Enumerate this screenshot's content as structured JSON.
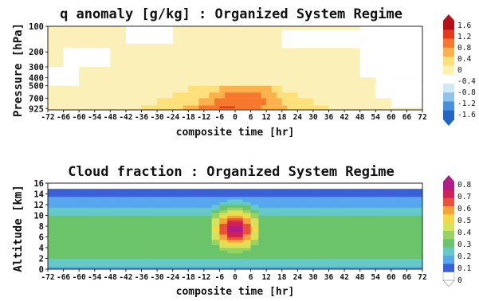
{
  "colors": {
    "q_scale": [
      "#2166c2",
      "#4a8fe0",
      "#8fc3ee",
      "#cfe8f5",
      "#ffffff",
      "#fff3b0",
      "#fde07a",
      "#fbb24c",
      "#f5782e",
      "#e43a1c",
      "#b5101a"
    ],
    "cf_scale": [
      "#ffffff",
      "#3b5fd6",
      "#57a6ee",
      "#64c9c8",
      "#6cc46a",
      "#98d260",
      "#d6e35a",
      "#f5d84a",
      "#f6a33a",
      "#e85238",
      "#d21f57",
      "#b01c8a"
    ],
    "q_background": "#fbf0b8"
  },
  "chart_data": [
    {
      "type": "heatmap",
      "title": "q anomaly [g/kg] : Organized System Regime",
      "xlabel": "composite time [hr]",
      "ylabel": "Pressure [hPa]",
      "x_ticks": [
        "-72",
        "-66",
        "-60",
        "-54",
        "-48",
        "-42",
        "-36",
        "-30",
        "-24",
        "-18",
        "-12",
        "-6",
        "0",
        "6",
        "12",
        "18",
        "24",
        "30",
        "36",
        "42",
        "48",
        "54",
        "60",
        "66",
        "72"
      ],
      "y_ticks": [
        "100",
        "200",
        "300",
        "400",
        "500",
        "700",
        "925"
      ],
      "xlim": [
        -72,
        72
      ],
      "colorbar": {
        "ticks": [
          "1.6",
          "1.2",
          "0.8",
          "0.4",
          "0",
          "-0.4",
          "-0.8",
          "-1.2",
          "-1.6"
        ],
        "range": [
          -1.6,
          1.6
        ]
      },
      "cells": [
        {
          "t0": -36,
          "t1": 36,
          "p0": 850,
          "p1": 960,
          "v": 0.3
        },
        {
          "t0": -30,
          "t1": 30,
          "p0": 700,
          "p1": 850,
          "v": 0.3
        },
        {
          "t0": -24,
          "t1": 24,
          "p0": 600,
          "p1": 700,
          "v": 0.3
        },
        {
          "t0": -18,
          "t1": 18,
          "p0": 500,
          "p1": 600,
          "v": 0.3
        },
        {
          "t0": -20,
          "t1": 20,
          "p0": 850,
          "p1": 950,
          "v": 0.55
        },
        {
          "t0": -14,
          "t1": 18,
          "p0": 700,
          "p1": 850,
          "v": 0.55
        },
        {
          "t0": -10,
          "t1": 16,
          "p0": 600,
          "p1": 700,
          "v": 0.55
        },
        {
          "t0": -6,
          "t1": 14,
          "p0": 500,
          "p1": 600,
          "v": 0.55
        },
        {
          "t0": -14,
          "t1": 10,
          "p0": 850,
          "p1": 940,
          "v": 0.8
        },
        {
          "t0": -8,
          "t1": 12,
          "p0": 700,
          "p1": 850,
          "v": 0.8
        },
        {
          "t0": -4,
          "t1": 10,
          "p0": 600,
          "p1": 700,
          "v": 0.8
        },
        {
          "t0": -8,
          "t1": 4,
          "p0": 850,
          "p1": 930,
          "v": 1.1
        },
        {
          "t0": -2,
          "t1": 6,
          "p0": 700,
          "p1": 850,
          "v": 1.1
        },
        {
          "t0": -6,
          "t1": 0,
          "p0": 870,
          "p1": 920,
          "v": 1.4
        },
        {
          "t0": -72,
          "t1": -60,
          "p0": 300,
          "p1": 500,
          "v": -0.2
        },
        {
          "t0": -66,
          "t1": -48,
          "p0": 180,
          "p1": 300,
          "v": -0.2
        },
        {
          "t0": -42,
          "t1": -24,
          "p0": 100,
          "p1": 160,
          "v": -0.2
        },
        {
          "t0": 18,
          "t1": 48,
          "p0": 110,
          "p1": 180,
          "v": -0.2
        },
        {
          "t0": 48,
          "t1": 72,
          "p0": 100,
          "p1": 400,
          "v": -0.2
        },
        {
          "t0": 54,
          "t1": 72,
          "p0": 400,
          "p1": 700,
          "v": -0.2
        },
        {
          "t0": 60,
          "t1": 72,
          "p0": 700,
          "p1": 900,
          "v": -0.2
        }
      ]
    },
    {
      "type": "heatmap",
      "title": "Cloud fraction : Organized System Regime",
      "xlabel": "composite time [hr]",
      "ylabel": "Altitude [km]",
      "x_ticks": [
        "-72",
        "-66",
        "-60",
        "-54",
        "-48",
        "-42",
        "-36",
        "-30",
        "-24",
        "-18",
        "-12",
        "-6",
        "0",
        "6",
        "12",
        "18",
        "24",
        "30",
        "36",
        "42",
        "48",
        "54",
        "60",
        "66",
        "72"
      ],
      "y_ticks": [
        "0",
        "2",
        "4",
        "6",
        "8",
        "10",
        "12",
        "14",
        "16"
      ],
      "xlim": [
        -72,
        72
      ],
      "ylim": [
        0,
        16
      ],
      "colorbar": {
        "ticks": [
          "0.8",
          "0.7",
          "0.6",
          "0.5",
          "0.4",
          "0.3",
          "0.2",
          "0.1",
          "0"
        ],
        "range": [
          0,
          0.8
        ]
      },
      "profile_km": [
        0,
        1,
        2,
        3,
        4,
        5,
        6,
        7,
        8,
        9,
        10,
        11,
        12,
        13,
        14,
        15,
        16
      ],
      "profile_background": [
        0.12,
        0.22,
        0.26,
        0.28,
        0.29,
        0.3,
        0.3,
        0.29,
        0.28,
        0.27,
        0.25,
        0.22,
        0.16,
        0.12,
        0.08,
        0.04,
        0.02
      ],
      "core_peak": 0.7,
      "core_time": 0
    }
  ]
}
